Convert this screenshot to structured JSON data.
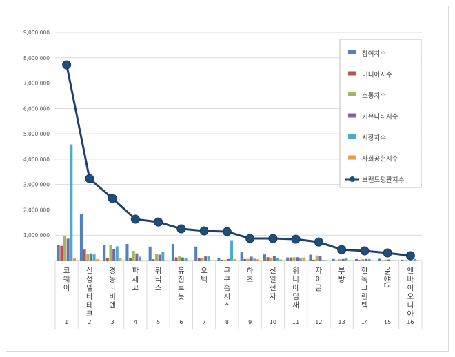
{
  "chart_data": {
    "type": "bar",
    "categories": [
      "코웨이",
      "신성델타테크",
      "경동나비엔",
      "파세코",
      "위닉스",
      "유진로봇",
      "오텍",
      "쿠쿠홈시스",
      "하츠",
      "신일전자",
      "위니아딤채",
      "자이글",
      "부방",
      "한독크린텍",
      "PN풍년",
      "엔바이오니아"
    ],
    "ranks": [
      "1",
      "2",
      "3",
      "4",
      "5",
      "6",
      "7",
      "8",
      "9",
      "10",
      "11",
      "12",
      "13",
      "14",
      "15",
      "16"
    ],
    "ylim": [
      0,
      9000000
    ],
    "yticks": [
      0,
      1000000,
      2000000,
      3000000,
      4000000,
      5000000,
      6000000,
      7000000,
      8000000,
      9000000
    ],
    "ytick_labels": [
      "-",
      "1,000,000",
      "2,000,000",
      "3,000,000",
      "4,000,000",
      "5,000,000",
      "6,000,000",
      "7,000,000",
      "8,000,000",
      "9,000,000"
    ],
    "grid": true,
    "legend_placement": "top-right",
    "series": [
      {
        "name": "참여지수",
        "kind": "bar",
        "color": "#4F81BD",
        "values": [
          600000,
          1820000,
          600000,
          650000,
          550000,
          650000,
          550000,
          110000,
          340000,
          240000,
          120000,
          230000,
          60000,
          60000,
          70000,
          30000
        ]
      },
      {
        "name": "미디어지수",
        "kind": "bar",
        "color": "#C0504D",
        "values": [
          580000,
          430000,
          100000,
          80000,
          50000,
          120000,
          90000,
          30000,
          60000,
          130000,
          120000,
          30000,
          10000,
          20000,
          10000,
          10000
        ]
      },
      {
        "name": "소통지수",
        "kind": "bar",
        "color": "#9BBB59",
        "values": [
          980000,
          270000,
          610000,
          380000,
          260000,
          160000,
          90000,
          30000,
          60000,
          90000,
          130000,
          200000,
          50000,
          50000,
          30000,
          10000
        ]
      },
      {
        "name": "커뮤니티지수",
        "kind": "bar",
        "color": "#8064A2",
        "values": [
          860000,
          280000,
          440000,
          280000,
          230000,
          120000,
          160000,
          60000,
          150000,
          190000,
          130000,
          180000,
          60000,
          60000,
          40000,
          10000
        ]
      },
      {
        "name": "시장지수",
        "kind": "bar",
        "color": "#4BACC6",
        "values": [
          4580000,
          240000,
          560000,
          150000,
          350000,
          80000,
          160000,
          800000,
          70000,
          100000,
          80000,
          20000,
          100000,
          60000,
          10000,
          60000
        ]
      },
      {
        "name": "사회공헌지수",
        "kind": "bar",
        "color": "#F79646",
        "values": [
          80000,
          50000,
          80000,
          10000,
          10000,
          10000,
          10000,
          60000,
          50000,
          40000,
          120000,
          10000,
          10000,
          10000,
          10000,
          10000
        ]
      },
      {
        "name": "브랜드평판지수",
        "kind": "line",
        "color": "#1F3F6E",
        "values": [
          7720000,
          3230000,
          2450000,
          1630000,
          1520000,
          1250000,
          1170000,
          1140000,
          870000,
          870000,
          840000,
          730000,
          430000,
          380000,
          300000,
          190000
        ]
      }
    ]
  }
}
